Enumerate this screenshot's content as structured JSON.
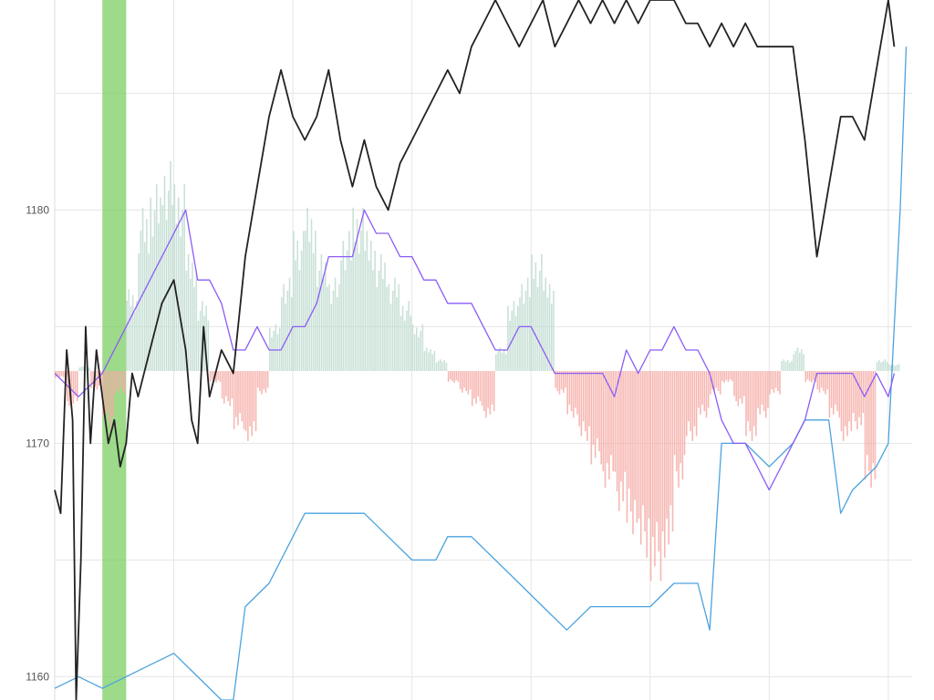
{
  "chart_data": {
    "type": "line",
    "title": "",
    "xlabel": "",
    "ylabel": "",
    "ylim": [
      1159.0,
      1189.0
    ],
    "yticks": [
      {
        "value": 1160,
        "label": "1160"
      },
      {
        "value": 1170,
        "label": "1170"
      },
      {
        "value": 1180,
        "label": "1180"
      }
    ],
    "grid": true,
    "legend": "none",
    "colors": {
      "price": "#222222",
      "purple": "#8b5cf6",
      "blue": "#4aa3df",
      "hist_pos": "#bfdcd0",
      "hist_neg": "#f4aaa4",
      "band": "#7ccd63",
      "grid": "#e6e6e6"
    },
    "histogram_baseline": 1173.1,
    "highlight_band": {
      "x_start": 4.0,
      "x_end": 6.0
    },
    "series": [
      {
        "role": "price",
        "points": [
          [
            0,
            1168
          ],
          [
            0.5,
            1167
          ],
          [
            1,
            1174
          ],
          [
            1.5,
            1171
          ],
          [
            1.8,
            1159
          ],
          [
            2.2,
            1165
          ],
          [
            2.6,
            1175
          ],
          [
            3,
            1170
          ],
          [
            3.5,
            1174
          ],
          [
            4,
            1172
          ],
          [
            4.5,
            1170
          ],
          [
            5,
            1171
          ],
          [
            5.5,
            1169
          ],
          [
            6,
            1170
          ],
          [
            6.5,
            1173
          ],
          [
            7,
            1172
          ],
          [
            8,
            1174
          ],
          [
            9,
            1176
          ],
          [
            10,
            1177
          ],
          [
            11,
            1174
          ],
          [
            11.5,
            1171
          ],
          [
            12,
            1170
          ],
          [
            12.5,
            1175
          ],
          [
            13,
            1172
          ],
          [
            14,
            1174
          ],
          [
            15,
            1173
          ],
          [
            16,
            1178
          ],
          [
            17,
            1181
          ],
          [
            18,
            1184
          ],
          [
            19,
            1186
          ],
          [
            20,
            1184
          ],
          [
            21,
            1183
          ],
          [
            22,
            1184
          ],
          [
            23,
            1186
          ],
          [
            24,
            1183
          ],
          [
            25,
            1181
          ],
          [
            26,
            1183
          ],
          [
            27,
            1181
          ],
          [
            28,
            1180
          ],
          [
            29,
            1182
          ],
          [
            30,
            1183
          ],
          [
            31,
            1184
          ],
          [
            32,
            1185
          ],
          [
            33,
            1186
          ],
          [
            34,
            1185
          ],
          [
            35,
            1187
          ],
          [
            36,
            1188
          ],
          [
            37,
            1189
          ],
          [
            38,
            1188
          ],
          [
            39,
            1187
          ],
          [
            40,
            1188
          ],
          [
            41,
            1189
          ],
          [
            42,
            1187
          ],
          [
            43,
            1188
          ],
          [
            44,
            1189
          ],
          [
            45,
            1188
          ],
          [
            46,
            1189
          ],
          [
            47,
            1188
          ],
          [
            48,
            1189
          ],
          [
            49,
            1188
          ],
          [
            50,
            1189
          ],
          [
            51,
            1189
          ],
          [
            52,
            1189
          ],
          [
            53,
            1188
          ],
          [
            54,
            1188
          ],
          [
            55,
            1187
          ],
          [
            56,
            1188
          ],
          [
            57,
            1187
          ],
          [
            58,
            1188
          ],
          [
            59,
            1187
          ],
          [
            60,
            1187
          ],
          [
            61,
            1187
          ],
          [
            62,
            1187
          ],
          [
            63,
            1183
          ],
          [
            64,
            1178
          ],
          [
            65,
            1181
          ],
          [
            66,
            1184
          ],
          [
            67,
            1184
          ],
          [
            68,
            1183
          ],
          [
            69,
            1186
          ],
          [
            70,
            1189
          ],
          [
            70.5,
            1187
          ]
        ]
      },
      {
        "role": "purple",
        "points": [
          [
            0,
            1173
          ],
          [
            2,
            1172
          ],
          [
            4,
            1173
          ],
          [
            6,
            1175
          ],
          [
            8,
            1177
          ],
          [
            10,
            1179
          ],
          [
            11,
            1180
          ],
          [
            12,
            1177
          ],
          [
            13,
            1177
          ],
          [
            14,
            1176
          ],
          [
            15,
            1174
          ],
          [
            16,
            1174
          ],
          [
            17,
            1175
          ],
          [
            18,
            1174
          ],
          [
            19,
            1174
          ],
          [
            20,
            1175
          ],
          [
            21,
            1175
          ],
          [
            22,
            1176
          ],
          [
            23,
            1178
          ],
          [
            24,
            1178
          ],
          [
            25,
            1178
          ],
          [
            26,
            1180
          ],
          [
            27,
            1179
          ],
          [
            28,
            1179
          ],
          [
            29,
            1178
          ],
          [
            30,
            1178
          ],
          [
            31,
            1177
          ],
          [
            32,
            1177
          ],
          [
            33,
            1176
          ],
          [
            34,
            1176
          ],
          [
            35,
            1176
          ],
          [
            36,
            1175
          ],
          [
            37,
            1174
          ],
          [
            38,
            1174
          ],
          [
            39,
            1175
          ],
          [
            40,
            1175
          ],
          [
            41,
            1174
          ],
          [
            42,
            1173
          ],
          [
            43,
            1173
          ],
          [
            44,
            1173
          ],
          [
            45,
            1173
          ],
          [
            46,
            1173
          ],
          [
            47,
            1172
          ],
          [
            48,
            1174
          ],
          [
            49,
            1173
          ],
          [
            50,
            1174
          ],
          [
            51,
            1174
          ],
          [
            52,
            1175
          ],
          [
            53,
            1174
          ],
          [
            54,
            1174
          ],
          [
            55,
            1173
          ],
          [
            56,
            1171
          ],
          [
            57,
            1170
          ],
          [
            58,
            1170
          ],
          [
            59,
            1169
          ],
          [
            60,
            1168
          ],
          [
            61,
            1169
          ],
          [
            62,
            1170
          ],
          [
            63,
            1171
          ],
          [
            64,
            1173
          ],
          [
            65,
            1173
          ],
          [
            66,
            1173
          ],
          [
            67,
            1173
          ],
          [
            68,
            1172
          ],
          [
            69,
            1173
          ],
          [
            70,
            1172
          ],
          [
            70.5,
            1173
          ]
        ]
      },
      {
        "role": "blue",
        "points": [
          [
            0,
            1159.5
          ],
          [
            2,
            1160
          ],
          [
            4,
            1159.5
          ],
          [
            6,
            1160
          ],
          [
            8,
            1160.5
          ],
          [
            10,
            1161
          ],
          [
            12,
            1160
          ],
          [
            14,
            1159
          ],
          [
            15,
            1159
          ],
          [
            16,
            1163
          ],
          [
            18,
            1164
          ],
          [
            20,
            1166
          ],
          [
            21,
            1167
          ],
          [
            22,
            1167
          ],
          [
            24,
            1167
          ],
          [
            26,
            1167
          ],
          [
            28,
            1166
          ],
          [
            30,
            1165
          ],
          [
            32,
            1165
          ],
          [
            33,
            1166
          ],
          [
            35,
            1166
          ],
          [
            37,
            1165
          ],
          [
            39,
            1164
          ],
          [
            41,
            1163
          ],
          [
            43,
            1162
          ],
          [
            45,
            1163
          ],
          [
            47,
            1163
          ],
          [
            48,
            1163
          ],
          [
            50,
            1163
          ],
          [
            52,
            1164
          ],
          [
            53,
            1164
          ],
          [
            54,
            1164
          ],
          [
            55,
            1162
          ],
          [
            56,
            1170
          ],
          [
            58,
            1170
          ],
          [
            60,
            1169
          ],
          [
            62,
            1170
          ],
          [
            63,
            1171
          ],
          [
            64,
            1171
          ],
          [
            65,
            1171
          ],
          [
            66,
            1167
          ],
          [
            67,
            1168
          ],
          [
            69,
            1169
          ],
          [
            70,
            1170
          ],
          [
            71,
            1180
          ],
          [
            71.5,
            1187
          ]
        ]
      }
    ],
    "histogram": [
      {
        "x": 0.5,
        "value": -0.3
      },
      {
        "x": 1.5,
        "value": -1.5
      },
      {
        "x": 2.5,
        "value": 0.2
      },
      {
        "x": 3.5,
        "value": -0.8
      },
      {
        "x": 4.5,
        "value": -2.5
      },
      {
        "x": 5.5,
        "value": -1
      },
      {
        "x": 6.5,
        "value": 3.5
      },
      {
        "x": 7.5,
        "value": 7
      },
      {
        "x": 8.5,
        "value": 8
      },
      {
        "x": 9.5,
        "value": 9
      },
      {
        "x": 10.5,
        "value": 8
      },
      {
        "x": 11.5,
        "value": 5
      },
      {
        "x": 12.5,
        "value": 3
      },
      {
        "x": 13.5,
        "value": -0.5
      },
      {
        "x": 14.5,
        "value": -1.5
      },
      {
        "x": 15.5,
        "value": -2.5
      },
      {
        "x": 16.5,
        "value": -3
      },
      {
        "x": 17.5,
        "value": -1
      },
      {
        "x": 18.5,
        "value": 2
      },
      {
        "x": 19.5,
        "value": 4
      },
      {
        "x": 20.5,
        "value": 6
      },
      {
        "x": 21.5,
        "value": 7
      },
      {
        "x": 22.5,
        "value": 5
      },
      {
        "x": 23.5,
        "value": 4
      },
      {
        "x": 24.5,
        "value": 6
      },
      {
        "x": 25.5,
        "value": 7
      },
      {
        "x": 26.5,
        "value": 6
      },
      {
        "x": 27.5,
        "value": 5
      },
      {
        "x": 28.5,
        "value": 4
      },
      {
        "x": 29.5,
        "value": 3
      },
      {
        "x": 30.5,
        "value": 2
      },
      {
        "x": 31.5,
        "value": 1
      },
      {
        "x": 32.5,
        "value": 0.5
      },
      {
        "x": 33.5,
        "value": -0.5
      },
      {
        "x": 34.5,
        "value": -1
      },
      {
        "x": 35.5,
        "value": -1.5
      },
      {
        "x": 36.5,
        "value": -2
      },
      {
        "x": 37.5,
        "value": 1
      },
      {
        "x": 38.5,
        "value": 3
      },
      {
        "x": 39.5,
        "value": 4
      },
      {
        "x": 40.5,
        "value": 5
      },
      {
        "x": 41.5,
        "value": 4
      },
      {
        "x": 42.5,
        "value": -1
      },
      {
        "x": 43.5,
        "value": -2
      },
      {
        "x": 44.5,
        "value": -3
      },
      {
        "x": 45.5,
        "value": -4
      },
      {
        "x": 46.5,
        "value": -5
      },
      {
        "x": 47.5,
        "value": -6
      },
      {
        "x": 48.5,
        "value": -7
      },
      {
        "x": 49.5,
        "value": -8
      },
      {
        "x": 50.5,
        "value": -9
      },
      {
        "x": 51.5,
        "value": -8
      },
      {
        "x": 52.5,
        "value": -5
      },
      {
        "x": 53.5,
        "value": -3
      },
      {
        "x": 54.5,
        "value": -2
      },
      {
        "x": 55.5,
        "value": -1
      },
      {
        "x": 56.5,
        "value": -0.5
      },
      {
        "x": 57.5,
        "value": -1.5
      },
      {
        "x": 58.5,
        "value": -3
      },
      {
        "x": 59.5,
        "value": -2
      },
      {
        "x": 60.5,
        "value": -1
      },
      {
        "x": 61.5,
        "value": 0.5
      },
      {
        "x": 62.5,
        "value": 1
      },
      {
        "x": 63.5,
        "value": -0.5
      },
      {
        "x": 64.5,
        "value": -1
      },
      {
        "x": 65.5,
        "value": -2
      },
      {
        "x": 66.5,
        "value": -3
      },
      {
        "x": 67.5,
        "value": -2.5
      },
      {
        "x": 68.5,
        "value": -5
      },
      {
        "x": 69.5,
        "value": 0.5
      },
      {
        "x": 70.5,
        "value": 0.3
      }
    ],
    "xlim": [
      0,
      72
    ]
  }
}
